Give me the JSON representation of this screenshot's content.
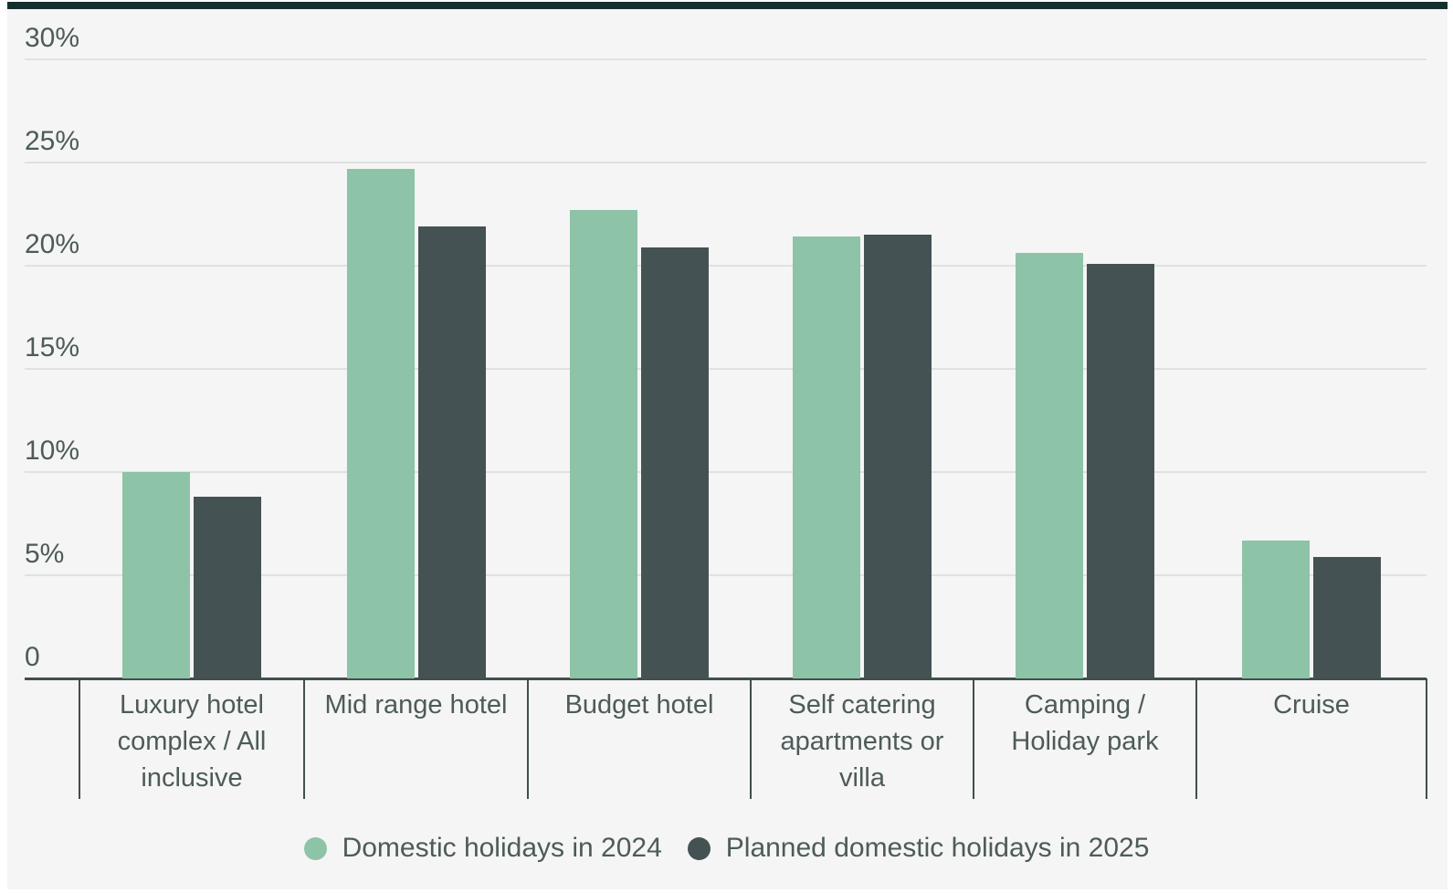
{
  "card": {
    "background": "#f4f5f4",
    "top_bar_color": "#14302e"
  },
  "chart_data": {
    "type": "bar",
    "title": "",
    "xlabel": "",
    "ylabel": "",
    "categories": [
      "Luxury hotel complex / All inclusive",
      "Mid range hotel",
      "Budget hotel",
      "Self catering apartments or villa",
      "Camping / Holiday park",
      "Cruise"
    ],
    "series": [
      {
        "name": "Domestic holidays in 2024",
        "color": "#8dc3a6",
        "values": [
          10.0,
          24.7,
          22.7,
          21.4,
          20.6,
          6.7
        ]
      },
      {
        "name": "Planned domestic holidays in 2025",
        "color": "#445253",
        "values": [
          8.8,
          21.9,
          20.9,
          21.5,
          20.1,
          5.9
        ]
      }
    ],
    "ylim": [
      0,
      30
    ],
    "yticks": [
      0,
      5,
      10,
      15,
      20,
      25,
      30
    ],
    "ytick_labels": [
      "0",
      "5%",
      "10%",
      "15%",
      "20%",
      "25%",
      "30%"
    ],
    "grid": true,
    "legend_position": "bottom",
    "colors": {
      "gridline": "#e0e1e1",
      "axis": "#414e4f",
      "text": "#4d5b59"
    }
  }
}
